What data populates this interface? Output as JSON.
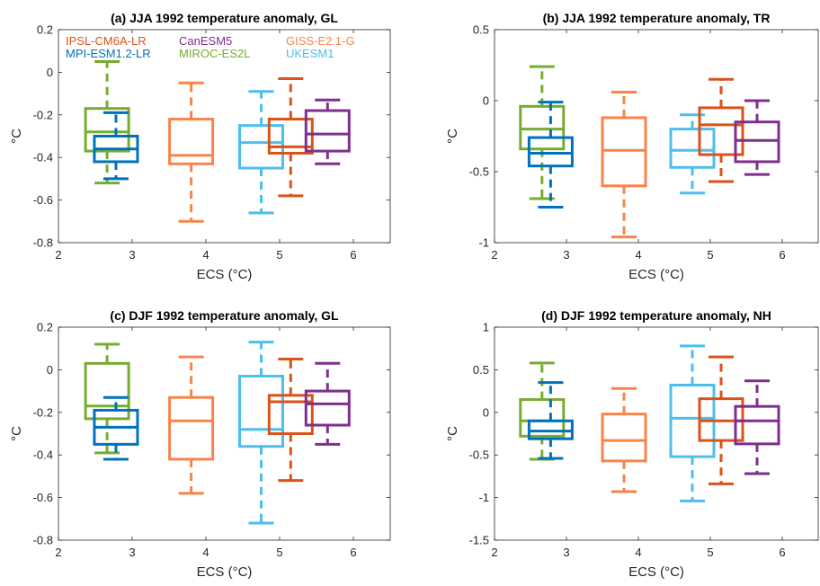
{
  "colors": {
    "IPSL-CM6A-LR": "#D95319",
    "MPI-ESM1.2-LR": "#0072BD",
    "CanESM5": "#7E2F8E",
    "MIROC-ES2L": "#77AC30",
    "GISS-E2.1-G": "#F9844A",
    "UKESM1": "#4DBEEE"
  },
  "legend": [
    {
      "name": "IPSL-CM6A-LR"
    },
    {
      "name": "CanESM5"
    },
    {
      "name": "GISS-E2.1-G"
    },
    {
      "name": "MPI-ESM1.2-LR"
    },
    {
      "name": "MIROC-ES2L"
    },
    {
      "name": "UKESM1"
    }
  ],
  "chart_data": [
    {
      "type": "box",
      "title": "(a) JJA 1992 temperature anomaly, GL",
      "xlabel": "ECS (°C)",
      "ylabel": "°C",
      "xlim": [
        2,
        6.5
      ],
      "ylim": [
        -0.8,
        0.2
      ],
      "xticks": [
        "2",
        "3",
        "4",
        "5",
        "6"
      ],
      "yticks": [
        "-0.8",
        "-0.6",
        "-0.4",
        "-0.2",
        "0",
        "0.2"
      ],
      "legend_position": "top-left",
      "boxes": [
        {
          "model": "MIROC-ES2L",
          "ecs": 2.66,
          "whisker_low": -0.52,
          "q1": -0.37,
          "median": -0.28,
          "q3": -0.17,
          "whisker_high": 0.05
        },
        {
          "model": "MPI-ESM1.2-LR",
          "ecs": 2.78,
          "whisker_low": -0.5,
          "q1": -0.42,
          "median": -0.36,
          "q3": -0.3,
          "whisker_high": -0.19
        },
        {
          "model": "GISS-E2.1-G",
          "ecs": 3.8,
          "whisker_low": -0.7,
          "q1": -0.43,
          "median": -0.39,
          "q3": -0.22,
          "whisker_high": -0.05
        },
        {
          "model": "UKESM1",
          "ecs": 4.75,
          "whisker_low": -0.66,
          "q1": -0.45,
          "median": -0.33,
          "q3": -0.25,
          "whisker_high": -0.09
        },
        {
          "model": "IPSL-CM6A-LR",
          "ecs": 5.15,
          "whisker_low": -0.58,
          "q1": -0.38,
          "median": -0.35,
          "q3": -0.22,
          "whisker_high": -0.03
        },
        {
          "model": "CanESM5",
          "ecs": 5.65,
          "whisker_low": -0.43,
          "q1": -0.37,
          "median": -0.29,
          "q3": -0.18,
          "whisker_high": -0.13
        }
      ]
    },
    {
      "type": "box",
      "title": "(b) JJA 1992 temperature anomaly, TR",
      "xlabel": "ECS (°C)",
      "ylabel": "°C",
      "xlim": [
        2,
        6.5
      ],
      "ylim": [
        -1,
        0.5
      ],
      "xticks": [
        "2",
        "3",
        "4",
        "5",
        "6"
      ],
      "yticks": [
        "-1",
        "-0.5",
        "0",
        "0.5"
      ],
      "boxes": [
        {
          "model": "MIROC-ES2L",
          "ecs": 2.66,
          "whisker_low": -0.69,
          "q1": -0.34,
          "median": -0.2,
          "q3": -0.04,
          "whisker_high": 0.24
        },
        {
          "model": "MPI-ESM1.2-LR",
          "ecs": 2.78,
          "whisker_low": -0.75,
          "q1": -0.46,
          "median": -0.37,
          "q3": -0.26,
          "whisker_high": -0.01
        },
        {
          "model": "GISS-E2.1-G",
          "ecs": 3.8,
          "whisker_low": -0.96,
          "q1": -0.6,
          "median": -0.35,
          "q3": -0.12,
          "whisker_high": 0.06
        },
        {
          "model": "UKESM1",
          "ecs": 4.75,
          "whisker_low": -0.65,
          "q1": -0.47,
          "median": -0.35,
          "q3": -0.2,
          "whisker_high": -0.1
        },
        {
          "model": "IPSL-CM6A-LR",
          "ecs": 5.15,
          "whisker_low": -0.57,
          "q1": -0.38,
          "median": -0.17,
          "q3": -0.05,
          "whisker_high": 0.15
        },
        {
          "model": "CanESM5",
          "ecs": 5.65,
          "whisker_low": -0.52,
          "q1": -0.43,
          "median": -0.28,
          "q3": -0.15,
          "whisker_high": 0.0
        }
      ]
    },
    {
      "type": "box",
      "title": "(c) DJF 1992 temperature anomaly, GL",
      "xlabel": "ECS (°C)",
      "ylabel": "°C",
      "xlim": [
        2,
        6.5
      ],
      "ylim": [
        -0.8,
        0.2
      ],
      "xticks": [
        "2",
        "3",
        "4",
        "5",
        "6"
      ],
      "yticks": [
        "-0.8",
        "-0.6",
        "-0.4",
        "-0.2",
        "0",
        "0.2"
      ],
      "boxes": [
        {
          "model": "MIROC-ES2L",
          "ecs": 2.66,
          "whisker_low": -0.39,
          "q1": -0.23,
          "median": -0.17,
          "q3": 0.03,
          "whisker_high": 0.12
        },
        {
          "model": "MPI-ESM1.2-LR",
          "ecs": 2.78,
          "whisker_low": -0.42,
          "q1": -0.35,
          "median": -0.27,
          "q3": -0.19,
          "whisker_high": -0.13
        },
        {
          "model": "GISS-E2.1-G",
          "ecs": 3.8,
          "whisker_low": -0.58,
          "q1": -0.42,
          "median": -0.24,
          "q3": -0.13,
          "whisker_high": 0.06
        },
        {
          "model": "UKESM1",
          "ecs": 4.75,
          "whisker_low": -0.72,
          "q1": -0.36,
          "median": -0.28,
          "q3": -0.03,
          "whisker_high": 0.13
        },
        {
          "model": "IPSL-CM6A-LR",
          "ecs": 5.15,
          "whisker_low": -0.52,
          "q1": -0.3,
          "median": -0.15,
          "q3": -0.12,
          "whisker_high": 0.05
        },
        {
          "model": "CanESM5",
          "ecs": 5.65,
          "whisker_low": -0.35,
          "q1": -0.26,
          "median": -0.16,
          "q3": -0.1,
          "whisker_high": 0.03
        }
      ]
    },
    {
      "type": "box",
      "title": "(d) DJF 1992 temperature anomaly, NH",
      "xlabel": "ECS (°C)",
      "ylabel": "°C",
      "xlim": [
        2,
        6.5
      ],
      "ylim": [
        -1.5,
        1
      ],
      "xticks": [
        "2",
        "3",
        "4",
        "5",
        "6"
      ],
      "yticks": [
        "-1.5",
        "-1",
        "-0.5",
        "0",
        "0.5",
        "1"
      ],
      "boxes": [
        {
          "model": "MIROC-ES2L",
          "ecs": 2.66,
          "whisker_low": -0.55,
          "q1": -0.28,
          "median": -0.1,
          "q3": 0.15,
          "whisker_high": 0.58
        },
        {
          "model": "MPI-ESM1.2-LR",
          "ecs": 2.78,
          "whisker_low": -0.54,
          "q1": -0.31,
          "median": -0.22,
          "q3": -0.1,
          "whisker_high": 0.35
        },
        {
          "model": "GISS-E2.1-G",
          "ecs": 3.8,
          "whisker_low": -0.93,
          "q1": -0.57,
          "median": -0.33,
          "q3": -0.02,
          "whisker_high": 0.28
        },
        {
          "model": "UKESM1",
          "ecs": 4.75,
          "whisker_low": -1.04,
          "q1": -0.52,
          "median": -0.07,
          "q3": 0.32,
          "whisker_high": 0.78
        },
        {
          "model": "IPSL-CM6A-LR",
          "ecs": 5.15,
          "whisker_low": -0.84,
          "q1": -0.33,
          "median": -0.1,
          "q3": 0.16,
          "whisker_high": 0.65
        },
        {
          "model": "CanESM5",
          "ecs": 5.65,
          "whisker_low": -0.72,
          "q1": -0.37,
          "median": -0.1,
          "q3": 0.07,
          "whisker_high": 0.37
        }
      ]
    }
  ]
}
